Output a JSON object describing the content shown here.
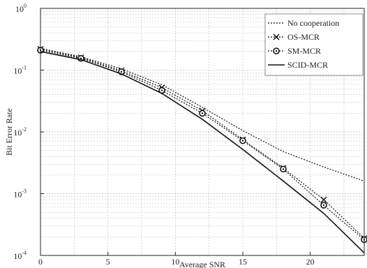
{
  "chart_data": {
    "type": "line",
    "title": "",
    "xlabel": "Average SNR",
    "ylabel": "Bit Error Rate",
    "x_scale": "linear",
    "y_scale": "log",
    "xlim": [
      0,
      24
    ],
    "ylim": [
      0.0001,
      1
    ],
    "x_ticks": [
      0,
      5,
      10,
      15,
      20
    ],
    "x_tick_labels": [
      "0",
      "5",
      "10",
      "15",
      "20"
    ],
    "y_ticks": [
      1,
      0.1,
      0.01,
      0.001,
      0.0001
    ],
    "y_tick_labels": [
      {
        "base": "10",
        "exp": "0"
      },
      {
        "base": "10",
        "exp": "-1"
      },
      {
        "base": "10",
        "exp": "-2"
      },
      {
        "base": "10",
        "exp": "-3"
      },
      {
        "base": "10",
        "exp": "-4"
      }
    ],
    "grid": true,
    "legend_position": "top-right",
    "series": [
      {
        "name": "No cooperation",
        "style": "dotted",
        "marker": "none",
        "x": [
          0,
          3,
          6,
          9,
          12,
          15,
          18,
          21,
          24
        ],
        "y": [
          0.225,
          0.165,
          0.105,
          0.058,
          0.025,
          0.0105,
          0.0048,
          0.0027,
          0.0016
        ]
      },
      {
        "name": "OS-MCR",
        "style": "dotted",
        "marker": "x",
        "x": [
          0,
          3,
          6,
          9,
          12,
          15,
          18,
          21,
          24
        ],
        "y": [
          0.22,
          0.16,
          0.098,
          0.052,
          0.022,
          0.0075,
          0.0026,
          0.0008,
          0.00019
        ]
      },
      {
        "name": "SM-MCR",
        "style": "dotted",
        "marker": "circle",
        "x": [
          0,
          3,
          6,
          9,
          12,
          15,
          18,
          21,
          24
        ],
        "y": [
          0.21,
          0.155,
          0.094,
          0.047,
          0.02,
          0.0072,
          0.0025,
          0.00065,
          0.00018
        ]
      },
      {
        "name": "SCID-MCR",
        "style": "solid",
        "marker": "none",
        "x": [
          0,
          3,
          6,
          9,
          12,
          15,
          18,
          21,
          24
        ],
        "y": [
          0.2,
          0.148,
          0.087,
          0.042,
          0.016,
          0.0052,
          0.0016,
          0.00048,
          0.00011
        ]
      }
    ]
  }
}
